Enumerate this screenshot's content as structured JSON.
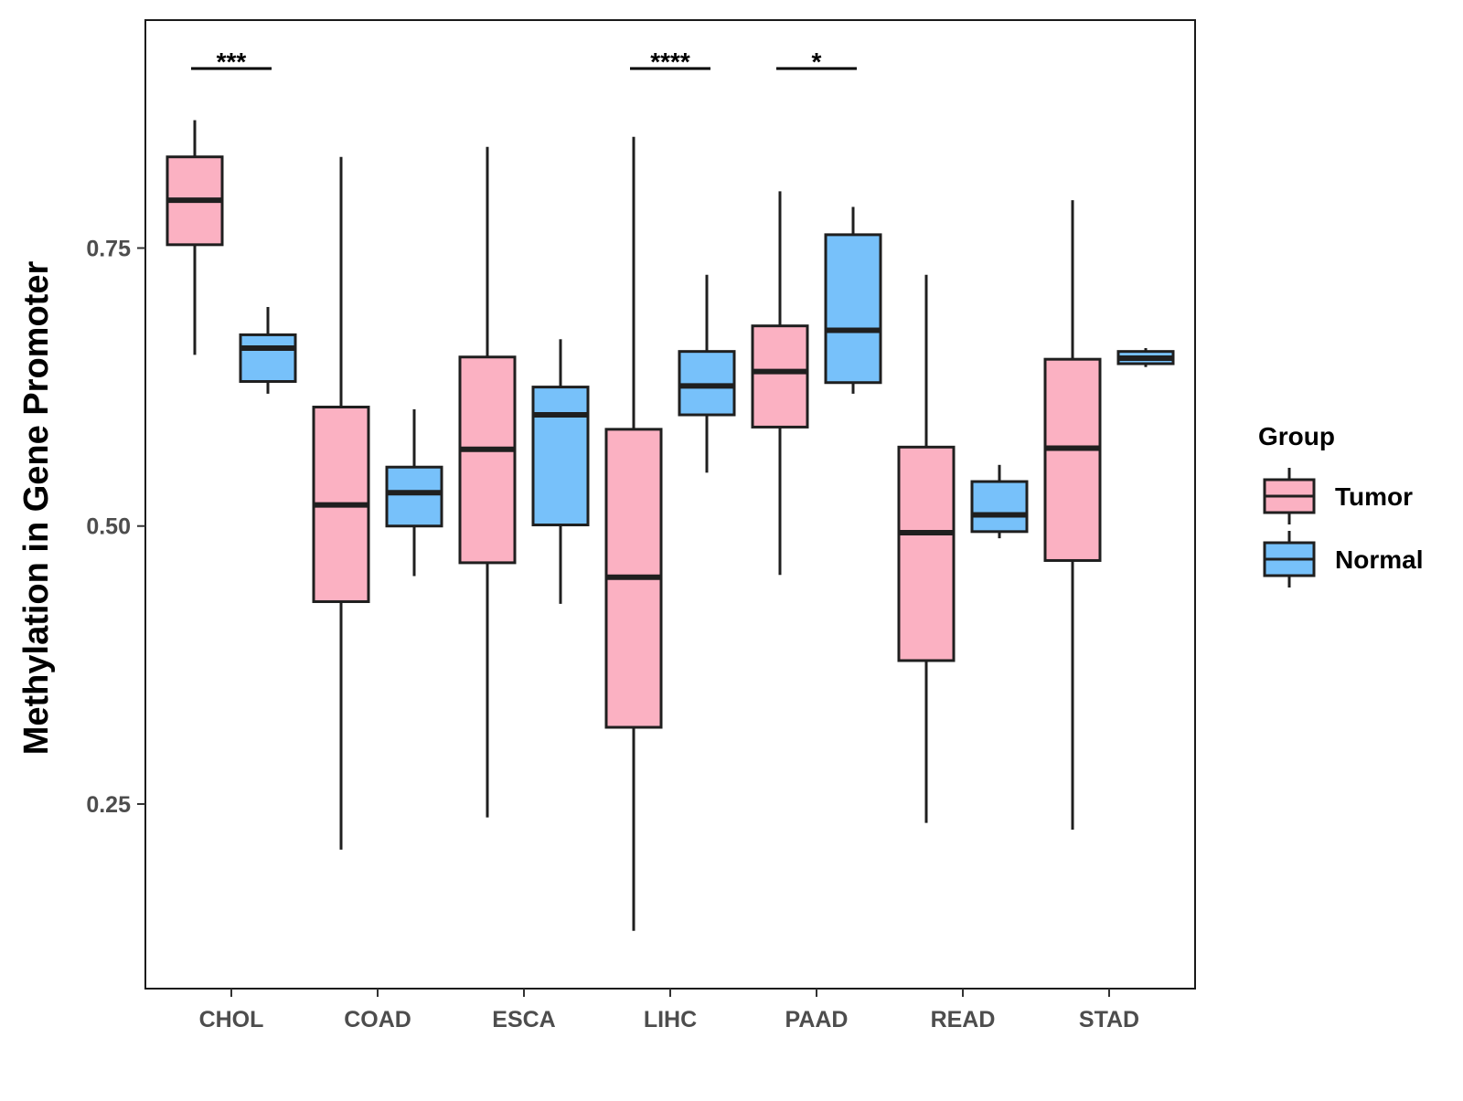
{
  "chart_data": {
    "type": "boxplot",
    "title": "",
    "xlabel": "",
    "ylabel": "Methylation in Gene Promoter",
    "ylim": [
      0.084,
      0.955
    ],
    "yticks": [
      0.25,
      0.5,
      0.75
    ],
    "ytick_labels": [
      "0.25",
      "0.50",
      "0.75"
    ],
    "grid": false,
    "categories": [
      "CHOL",
      "COAD",
      "ESCA",
      "LIHC",
      "PAAD",
      "READ",
      "STAD"
    ],
    "legend": {
      "title": "Group",
      "position": "right",
      "entries": [
        {
          "name": "Tumor",
          "color": "#fbb1c2"
        },
        {
          "name": "Normal",
          "color": "#77c1fa"
        }
      ]
    },
    "series": [
      {
        "name": "Tumor",
        "color": "#fbb1c2",
        "boxes": [
          {
            "category": "CHOL",
            "min": 0.654,
            "q1": 0.753,
            "median": 0.793,
            "q3": 0.832,
            "max": 0.865
          },
          {
            "category": "COAD",
            "min": 0.209,
            "q1": 0.432,
            "median": 0.519,
            "q3": 0.607,
            "max": 0.832
          },
          {
            "category": "ESCA",
            "min": 0.238,
            "q1": 0.467,
            "median": 0.569,
            "q3": 0.652,
            "max": 0.841
          },
          {
            "category": "LIHC",
            "min": 0.136,
            "q1": 0.319,
            "median": 0.454,
            "q3": 0.587,
            "max": 0.85
          },
          {
            "category": "PAAD",
            "min": 0.456,
            "q1": 0.589,
            "median": 0.639,
            "q3": 0.68,
            "max": 0.801
          },
          {
            "category": "READ",
            "min": 0.233,
            "q1": 0.379,
            "median": 0.494,
            "q3": 0.571,
            "max": 0.726
          },
          {
            "category": "STAD",
            "min": 0.227,
            "q1": 0.469,
            "median": 0.57,
            "q3": 0.65,
            "max": 0.793
          }
        ]
      },
      {
        "name": "Normal",
        "color": "#77c1fa",
        "boxes": [
          {
            "category": "CHOL",
            "min": 0.619,
            "q1": 0.63,
            "median": 0.66,
            "q3": 0.672,
            "max": 0.697
          },
          {
            "category": "COAD",
            "min": 0.455,
            "q1": 0.5,
            "median": 0.53,
            "q3": 0.553,
            "max": 0.605
          },
          {
            "category": "ESCA",
            "min": 0.43,
            "q1": 0.501,
            "median": 0.6,
            "q3": 0.625,
            "max": 0.668
          },
          {
            "category": "LIHC",
            "min": 0.548,
            "q1": 0.6,
            "median": 0.626,
            "q3": 0.657,
            "max": 0.726
          },
          {
            "category": "PAAD",
            "min": 0.619,
            "q1": 0.629,
            "median": 0.676,
            "q3": 0.762,
            "max": 0.787
          },
          {
            "category": "READ",
            "min": 0.489,
            "q1": 0.495,
            "median": 0.51,
            "q3": 0.54,
            "max": 0.555
          },
          {
            "category": "STAD",
            "min": 0.643,
            "q1": 0.646,
            "median": 0.651,
            "q3": 0.657,
            "max": 0.66
          }
        ]
      }
    ],
    "annotations": [
      {
        "category": "CHOL",
        "label": "***"
      },
      {
        "category": "LIHC",
        "label": "****"
      },
      {
        "category": "PAAD",
        "label": "*"
      }
    ]
  }
}
